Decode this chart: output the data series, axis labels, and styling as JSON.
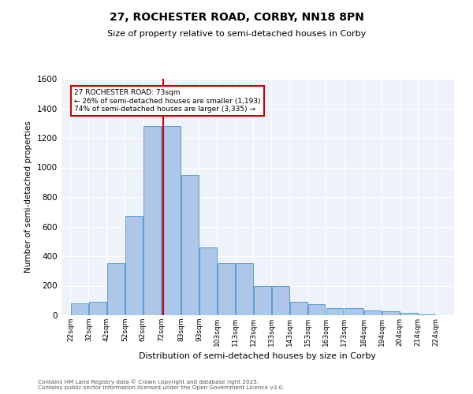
{
  "title_line1": "27, ROCHESTER ROAD, CORBY, NN18 8PN",
  "title_line2": "Size of property relative to semi-detached houses in Corby",
  "xlabel": "Distribution of semi-detached houses by size in Corby",
  "ylabel": "Number of semi-detached properties",
  "footnote1": "Contains HM Land Registry data © Crown copyright and database right 2025.",
  "footnote2": "Contains public sector information licensed under the Open Government Licence v3.0.",
  "annotation_line1": "27 ROCHESTER ROAD: 73sqm",
  "annotation_line2": "← 26% of semi-detached houses are smaller (1,193)",
  "annotation_line3": "74% of semi-detached houses are larger (3,335) →",
  "property_size": 73,
  "bar_left_edges": [
    22,
    32,
    42,
    52,
    62,
    72,
    83,
    93,
    103,
    113,
    123,
    133,
    143,
    153,
    163,
    173,
    184,
    194,
    204,
    214
  ],
  "bar_widths": [
    10,
    10,
    10,
    10,
    10,
    11,
    10,
    10,
    10,
    10,
    10,
    10,
    10,
    10,
    10,
    11,
    10,
    10,
    10,
    10
  ],
  "bar_heights": [
    80,
    90,
    350,
    670,
    1280,
    1280,
    950,
    460,
    350,
    350,
    200,
    195,
    90,
    75,
    50,
    50,
    30,
    25,
    15,
    5
  ],
  "bar_color": "#AEC6E8",
  "bar_edge_color": "#5B9BD5",
  "vline_color": "#CC0000",
  "annotation_box_color": "#CC0000",
  "background_color": "#EEF3FB",
  "ylim": [
    0,
    1600
  ],
  "yticks": [
    0,
    200,
    400,
    600,
    800,
    1000,
    1200,
    1400,
    1600
  ],
  "x_tick_labels": [
    "22sqm",
    "32sqm",
    "42sqm",
    "52sqm",
    "62sqm",
    "72sqm",
    "83sqm",
    "93sqm",
    "103sqm",
    "113sqm",
    "123sqm",
    "133sqm",
    "143sqm",
    "153sqm",
    "163sqm",
    "173sqm",
    "184sqm",
    "194sqm",
    "204sqm",
    "214sqm",
    "224sqm"
  ],
  "x_tick_positions": [
    22,
    32,
    42,
    52,
    62,
    72,
    83,
    93,
    103,
    113,
    123,
    133,
    143,
    153,
    163,
    173,
    184,
    194,
    204,
    214,
    224
  ],
  "figsize": [
    6.0,
    5.0
  ],
  "dpi": 100
}
